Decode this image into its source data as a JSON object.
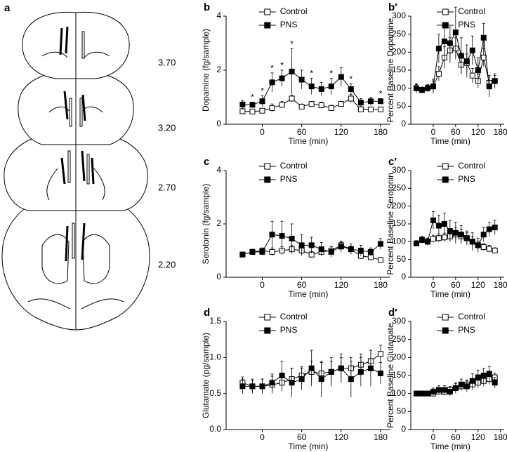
{
  "panel_a": {
    "label": "a",
    "levels": [
      "3.70",
      "3.20",
      "2.70",
      "2.20"
    ]
  },
  "chart_data": [
    {
      "type": "line",
      "panel": "b",
      "ylabel": "Dopamine (fg/sample)",
      "xlabel": "Time (min)",
      "x": [
        -30,
        -15,
        0,
        15,
        30,
        45,
        60,
        75,
        90,
        105,
        120,
        135,
        150,
        165,
        180
      ],
      "xlim": [
        -55,
        195
      ],
      "xticks": [
        0,
        60,
        120,
        180
      ],
      "ylim": [
        0,
        4
      ],
      "yticks": [
        0,
        2,
        4
      ],
      "legend": "top",
      "significance": {
        "label": "*",
        "x": [
          -15,
          0,
          15,
          30,
          45,
          75,
          105,
          135,
          180
        ]
      },
      "series": [
        {
          "name": "Control",
          "color": "#000000",
          "marker_fill": "#ffffff",
          "values": [
            0.48,
            0.47,
            0.5,
            0.6,
            0.72,
            0.95,
            0.65,
            0.75,
            0.7,
            0.6,
            0.75,
            0.95,
            0.55,
            0.55,
            0.55
          ],
          "errors": [
            0.1,
            0.08,
            0.08,
            0.15,
            0.12,
            0.12,
            0.1,
            0.1,
            0.12,
            0.1,
            0.1,
            0.15,
            0.1,
            0.08,
            0.08
          ]
        },
        {
          "name": "PNS",
          "color": "#000000",
          "marker_fill": "#000000",
          "values": [
            0.73,
            0.72,
            0.85,
            1.55,
            1.7,
            1.95,
            1.65,
            1.4,
            1.3,
            1.4,
            1.75,
            1.3,
            0.8,
            0.85,
            0.85
          ],
          "errors": [
            0.15,
            0.1,
            0.2,
            0.35,
            0.3,
            0.85,
            0.35,
            0.3,
            0.25,
            0.3,
            0.35,
            0.2,
            0.15,
            0.15,
            0.1
          ]
        }
      ]
    },
    {
      "type": "line",
      "panel": "b′",
      "ylabel": "Percent Baseline Dopamine",
      "xlabel": "Time (min)",
      "x": [
        -45,
        -30,
        -15,
        0,
        15,
        30,
        45,
        60,
        75,
        90,
        105,
        120,
        135,
        150,
        165
      ],
      "xlim": [
        -60,
        190
      ],
      "xticks": [
        0,
        60,
        120,
        180
      ],
      "ylim": [
        0,
        300
      ],
      "yticks": [
        0,
        50,
        100,
        150,
        200,
        250,
        300
      ],
      "legend": "top",
      "series": [
        {
          "name": "Control",
          "color": "#000000",
          "marker_fill": "#ffffff",
          "values": [
            100,
            95,
            100,
            105,
            140,
            185,
            205,
            210,
            165,
            170,
            135,
            120,
            185,
            115,
            120
          ],
          "errors": [
            10,
            8,
            8,
            15,
            20,
            30,
            35,
            30,
            25,
            25,
            20,
            20,
            25,
            20,
            15
          ]
        },
        {
          "name": "PNS",
          "color": "#000000",
          "marker_fill": "#000000",
          "values": [
            100,
            95,
            100,
            105,
            210,
            230,
            225,
            255,
            190,
            175,
            205,
            150,
            240,
            105,
            120
          ],
          "errors": [
            12,
            8,
            10,
            20,
            40,
            50,
            45,
            70,
            50,
            45,
            40,
            35,
            40,
            30,
            20
          ]
        }
      ]
    },
    {
      "type": "line",
      "panel": "c",
      "ylabel": "Serotonin (fg/sample)",
      "xlabel": "Time (min)",
      "x": [
        -30,
        -15,
        0,
        15,
        30,
        45,
        60,
        75,
        90,
        105,
        120,
        135,
        150,
        165,
        180
      ],
      "xlim": [
        -55,
        195
      ],
      "xticks": [
        0,
        60,
        120,
        180
      ],
      "ylim": [
        0,
        4
      ],
      "yticks": [
        0,
        2,
        4
      ],
      "legend": "top",
      "series": [
        {
          "name": "Control",
          "color": "#000000",
          "marker_fill": "#ffffff",
          "values": [
            0.85,
            0.95,
            1.0,
            0.95,
            1.0,
            1.05,
            1.0,
            0.85,
            0.95,
            1.0,
            1.2,
            1.05,
            0.8,
            0.75,
            0.65
          ],
          "errors": [
            0.1,
            0.1,
            0.1,
            0.15,
            0.15,
            0.15,
            0.15,
            0.12,
            0.12,
            0.15,
            0.12,
            0.12,
            0.12,
            0.1,
            0.08
          ]
        },
        {
          "name": "PNS",
          "color": "#000000",
          "marker_fill": "#000000",
          "values": [
            0.85,
            0.95,
            0.95,
            1.6,
            1.55,
            1.45,
            1.2,
            1.2,
            1.05,
            0.95,
            1.15,
            1.05,
            1.0,
            0.95,
            1.25
          ],
          "errors": [
            0.1,
            0.1,
            0.12,
            0.5,
            0.55,
            0.55,
            0.4,
            0.3,
            0.25,
            0.2,
            0.2,
            0.2,
            0.2,
            0.15,
            0.2
          ]
        }
      ]
    },
    {
      "type": "line",
      "panel": "c′",
      "ylabel": "Percent Baseline Serotonin",
      "xlabel": "Time (min)",
      "x": [
        -45,
        -30,
        -15,
        0,
        15,
        30,
        45,
        60,
        75,
        90,
        105,
        120,
        135,
        150,
        165
      ],
      "xlim": [
        -60,
        190
      ],
      "xticks": [
        0,
        60,
        120,
        180
      ],
      "ylim": [
        0,
        300
      ],
      "yticks": [
        0,
        50,
        100,
        150,
        200,
        250,
        300
      ],
      "legend": "top",
      "series": [
        {
          "name": "Control",
          "color": "#000000",
          "marker_fill": "#ffffff",
          "values": [
            95,
            105,
            100,
            108,
            110,
            112,
            115,
            120,
            115,
            110,
            100,
            90,
            85,
            80,
            75
          ],
          "errors": [
            8,
            8,
            10,
            10,
            12,
            12,
            15,
            20,
            20,
            15,
            15,
            12,
            10,
            10,
            8
          ]
        },
        {
          "name": "PNS",
          "color": "#000000",
          "marker_fill": "#000000",
          "values": [
            95,
            105,
            100,
            160,
            145,
            150,
            130,
            125,
            120,
            110,
            100,
            90,
            120,
            135,
            140
          ],
          "errors": [
            8,
            10,
            10,
            25,
            30,
            30,
            30,
            30,
            25,
            20,
            25,
            20,
            20,
            20,
            20
          ]
        }
      ]
    },
    {
      "type": "line",
      "panel": "d",
      "ylabel": "Glutamate (pg/sample)",
      "xlabel": "Time (min)",
      "x": [
        -30,
        -15,
        0,
        15,
        30,
        45,
        60,
        75,
        90,
        105,
        120,
        135,
        150,
        165,
        180
      ],
      "xlim": [
        -55,
        195
      ],
      "xticks": [
        0,
        60,
        120,
        180
      ],
      "ylim": [
        0,
        1.5
      ],
      "yticks": [
        {
          "value": 0,
          "label": "0.0"
        },
        {
          "value": 0.5,
          "label": "0.5"
        },
        {
          "value": 1,
          "label": "1.0"
        },
        {
          "value": 1.5,
          "label": "1.5"
        }
      ],
      "legend": "top",
      "series": [
        {
          "name": "Control",
          "color": "#000000",
          "marker_fill": "#ffffff",
          "values": [
            0.65,
            0.6,
            0.6,
            0.62,
            0.65,
            0.7,
            0.75,
            0.8,
            0.78,
            0.8,
            0.85,
            0.85,
            0.9,
            0.95,
            1.05
          ],
          "errors": [
            0.08,
            0.08,
            0.1,
            0.12,
            0.12,
            0.15,
            0.12,
            0.15,
            0.15,
            0.15,
            0.15,
            0.15,
            0.15,
            0.15,
            0.12
          ]
        },
        {
          "name": "PNS",
          "color": "#000000",
          "marker_fill": "#000000",
          "values": [
            0.6,
            0.6,
            0.6,
            0.65,
            0.75,
            0.65,
            0.7,
            0.85,
            0.7,
            0.8,
            0.85,
            0.7,
            0.8,
            0.85,
            0.78
          ],
          "errors": [
            0.1,
            0.1,
            0.1,
            0.12,
            0.2,
            0.2,
            0.15,
            0.25,
            0.25,
            0.2,
            0.2,
            0.25,
            0.2,
            0.25,
            0.15
          ]
        }
      ]
    },
    {
      "type": "line",
      "panel": "d′",
      "ylabel": "Percent Baseline Glutamate",
      "xlabel": "Time (min)",
      "x": [
        -45,
        -30,
        -15,
        0,
        15,
        30,
        45,
        60,
        75,
        90,
        105,
        120,
        135,
        150,
        165
      ],
      "xlim": [
        -60,
        190
      ],
      "xticks": [
        0,
        60,
        120,
        180
      ],
      "ylim": [
        0,
        300
      ],
      "yticks": [
        0,
        50,
        100,
        150,
        200,
        250,
        300
      ],
      "legend": "top",
      "series": [
        {
          "name": "Control",
          "color": "#000000",
          "marker_fill": "#ffffff",
          "values": [
            100,
            100,
            100,
            100,
            105,
            105,
            110,
            115,
            120,
            125,
            125,
            130,
            135,
            140,
            145
          ],
          "errors": [
            5,
            5,
            5,
            8,
            8,
            10,
            10,
            12,
            12,
            12,
            15,
            15,
            15,
            15,
            12
          ]
        },
        {
          "name": "PNS",
          "color": "#000000",
          "marker_fill": "#000000",
          "values": [
            100,
            100,
            100,
            105,
            110,
            110,
            105,
            115,
            125,
            120,
            135,
            145,
            150,
            155,
            130
          ],
          "errors": [
            5,
            5,
            6,
            10,
            12,
            12,
            12,
            15,
            15,
            15,
            20,
            20,
            20,
            20,
            15
          ]
        }
      ]
    }
  ]
}
